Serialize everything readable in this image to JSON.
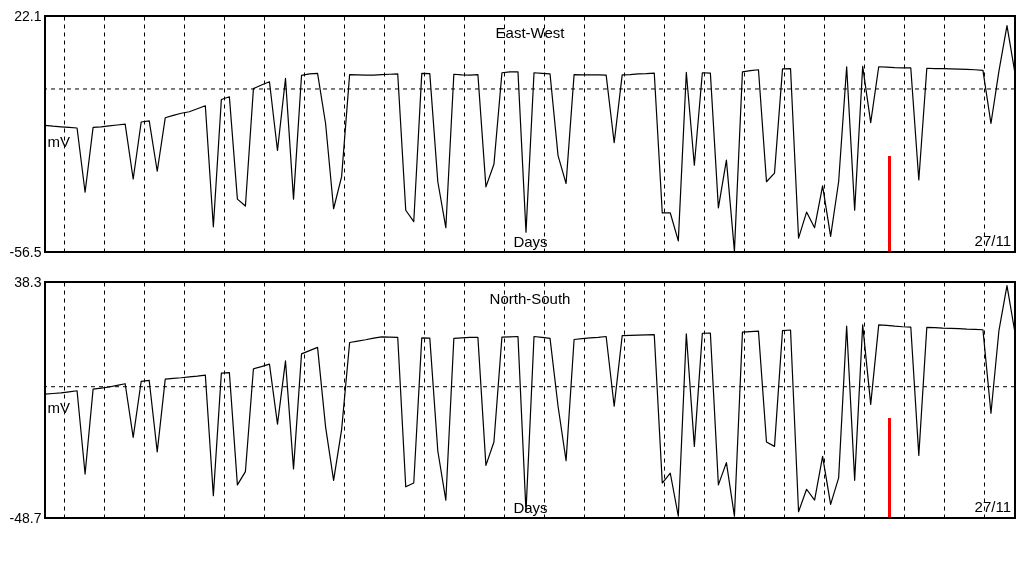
{
  "chart_data": [
    {
      "type": "line",
      "title": "East-West",
      "xlabel": "Days",
      "ylabel": "mV",
      "annotations": [
        "27/11"
      ],
      "grid": "x",
      "ylim": [
        -56.5,
        22.1
      ],
      "yticks": [
        -56.5,
        22.1
      ],
      "ref_lines": [
        {
          "axis": "y",
          "value": -2.2,
          "line_style": "dashed",
          "color": "#000000"
        }
      ],
      "categories": [
        null,
        null,
        null,
        null,
        null,
        null,
        null,
        null,
        null,
        null,
        null,
        null,
        null,
        null,
        null,
        null,
        null,
        null,
        null,
        null,
        null,
        null,
        null,
        null,
        null,
        null,
        null,
        null,
        null,
        null,
        null,
        null,
        null,
        null,
        null,
        null,
        null,
        null,
        null,
        null,
        null,
        null,
        null,
        null,
        null,
        null,
        null,
        null,
        null,
        null,
        null,
        null,
        null,
        null,
        null,
        null,
        null,
        null,
        null,
        null,
        null,
        null,
        null,
        null,
        null,
        null,
        null,
        null,
        null,
        null,
        null,
        null,
        null,
        null,
        null,
        null,
        null,
        null,
        null,
        null,
        null,
        null,
        null,
        null,
        null,
        null,
        null,
        null,
        null,
        null,
        null,
        null,
        null,
        null,
        null,
        null,
        null,
        null,
        null,
        null,
        null,
        null,
        null,
        null,
        null,
        null,
        null,
        null,
        null,
        null,
        null,
        null,
        null,
        null,
        null,
        null,
        null,
        null,
        null,
        null,
        null,
        null
      ],
      "series": [
        {
          "color": "#000000",
          "values": [
            -14.3,
            -14.6,
            -14.8,
            -15.0,
            -15.2,
            -36.6,
            -15.0,
            -14.8,
            -14.5,
            -14.2,
            -13.9,
            -32.2,
            -13.2,
            -12.8,
            -29.6,
            -11.8,
            -11.0,
            -10.3,
            -9.8,
            -8.8,
            -7.8,
            -48.1,
            -5.7,
            -4.8,
            -38.9,
            -41.2,
            -2.1,
            -0.9,
            0.2,
            -22.7,
            1.3,
            -38.9,
            2.3,
            2.8,
            3.0,
            -13.7,
            -42.1,
            -31.4,
            2.6,
            2.5,
            2.4,
            2.4,
            2.6,
            2.7,
            2.8,
            -42.6,
            -46.4,
            3.0,
            2.9,
            -33.1,
            -48.4,
            2.7,
            2.5,
            2.4,
            2.6,
            -34.8,
            -27.3,
            3.2,
            3.5,
            3.5,
            -49.9,
            3.2,
            3.0,
            2.8,
            -24.4,
            -33.7,
            2.6,
            2.5,
            2.5,
            2.5,
            2.4,
            -20.1,
            2.5,
            2.6,
            2.8,
            2.9,
            3.1,
            -43.5,
            -43.5,
            -52.8,
            3.3,
            -27.6,
            3.2,
            3.1,
            -41.8,
            -25.9,
            -56.2,
            3.5,
            3.9,
            4.2,
            -33.1,
            -30.2,
            4.5,
            4.6,
            -51.9,
            -43.2,
            -48.4,
            -34.5,
            -51.3,
            -33.1,
            5.2,
            -42.6,
            5.3,
            -13.4,
            5.2,
            5.1,
            4.9,
            4.8,
            4.8,
            -32.5,
            4.7,
            4.6,
            4.6,
            4.5,
            4.4,
            4.3,
            4.2,
            4.0,
            -13.7,
            3.8,
            18.9,
            3.0
          ]
        }
      ]
    },
    {
      "type": "line",
      "title": "North-South",
      "xlabel": "Days",
      "ylabel": "mV",
      "annotations": [
        "27/11"
      ],
      "grid": "x",
      "ylim": [
        -48.7,
        38.3
      ],
      "yticks": [
        -48.7,
        38.3
      ],
      "ref_lines": [
        {
          "axis": "y",
          "value": -0.3,
          "line_style": "dashed",
          "color": "#000000"
        }
      ],
      "categories": [
        null,
        null,
        null,
        null,
        null,
        null,
        null,
        null,
        null,
        null,
        null,
        null,
        null,
        null,
        null,
        null,
        null,
        null,
        null,
        null,
        null,
        null,
        null,
        null,
        null,
        null,
        null,
        null,
        null,
        null,
        null,
        null,
        null,
        null,
        null,
        null,
        null,
        null,
        null,
        null,
        null,
        null,
        null,
        null,
        null,
        null,
        null,
        null,
        null,
        null,
        null,
        null,
        null,
        null,
        null,
        null,
        null,
        null,
        null,
        null,
        null,
        null,
        null,
        null,
        null,
        null,
        null,
        null,
        null,
        null,
        null,
        null,
        null,
        null,
        null,
        null,
        null,
        null,
        null,
        null,
        null,
        null,
        null,
        null,
        null,
        null,
        null,
        null,
        null,
        null,
        null,
        null,
        null,
        null,
        null,
        null,
        null,
        null,
        null,
        null,
        null,
        null,
        null,
        null,
        null,
        null,
        null,
        null,
        null,
        null,
        null,
        null,
        null,
        null,
        null,
        null,
        null,
        null,
        null,
        null,
        null,
        null
      ],
      "series": [
        {
          "color": "#000000",
          "values": [
            -3.0,
            -2.8,
            -2.6,
            -2.2,
            -1.8,
            -32.5,
            -1.2,
            -0.8,
            -0.4,
            0.2,
            0.8,
            -19.0,
            1.7,
            2.0,
            -24.3,
            2.5,
            2.8,
            3.0,
            3.3,
            3.6,
            4.0,
            -40.5,
            4.7,
            4.9,
            -36.5,
            -31.6,
            6.3,
            7.1,
            8.0,
            -14.1,
            9.2,
            -30.6,
            11.8,
            13.0,
            14.2,
            -15.1,
            -34.8,
            -16.1,
            16.0,
            16.5,
            17.0,
            17.6,
            18.1,
            18.0,
            17.9,
            -37.2,
            -35.8,
            17.7,
            17.6,
            -24.0,
            -42.1,
            17.5,
            17.7,
            17.9,
            17.9,
            -29.3,
            -20.7,
            18.0,
            18.1,
            18.2,
            -46.4,
            18.2,
            17.9,
            17.5,
            -7.5,
            -27.6,
            17.1,
            17.4,
            17.7,
            17.9,
            18.2,
            -7.5,
            18.5,
            18.6,
            18.7,
            18.8,
            18.9,
            -35.8,
            -32.2,
            -48.0,
            19.2,
            -22.3,
            19.4,
            19.5,
            -36.5,
            -28.3,
            -48.0,
            19.8,
            20.0,
            20.2,
            -20.7,
            -22.3,
            20.4,
            20.6,
            -46.4,
            -38.1,
            -42.1,
            -26.0,
            -43.7,
            -33.9,
            22.0,
            -34.8,
            22.5,
            -6.8,
            22.5,
            22.3,
            22.0,
            21.8,
            21.7,
            -25.6,
            21.6,
            21.5,
            21.3,
            21.2,
            21.1,
            20.9,
            20.8,
            20.7,
            -10.1,
            20.5,
            37.0,
            19.5
          ]
        }
      ]
    }
  ]
}
